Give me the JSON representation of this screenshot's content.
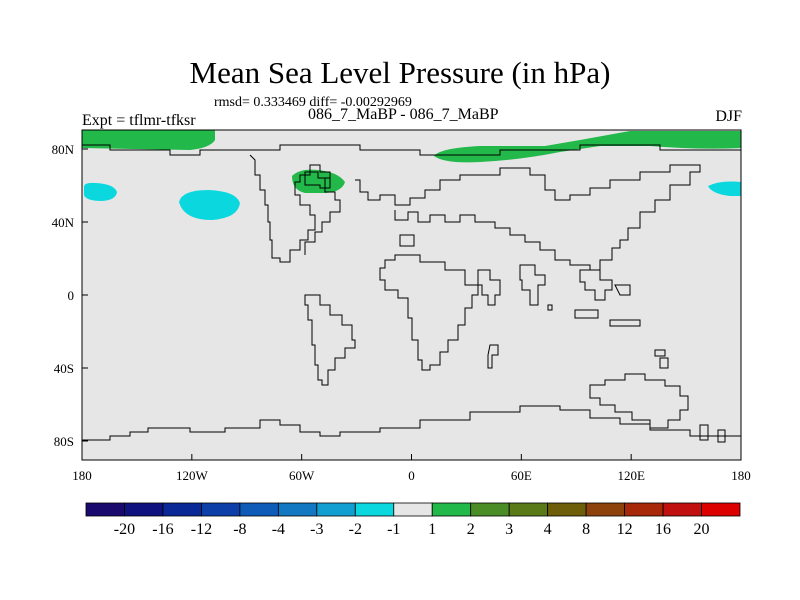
{
  "title": "Mean Sea Level Pressure (in hPa)",
  "stats": "rmsd= 0.333469 diff= -0.00292969",
  "subtitle": "086_7_MaBP - 086_7_MaBP",
  "left_label": "Expt = tflmr-tfksr",
  "right_label": "DJF",
  "colors": {
    "background_field": "#e6e6e6",
    "positive_anomaly": "#22b84a",
    "negative_anomaly": "#0ad8de",
    "coastline": "#000000"
  },
  "chart_data": {
    "type": "heatmap",
    "variable": "Mean Sea Level Pressure difference",
    "units": "hPa",
    "x_ticks": [
      "180",
      "120W",
      "60W",
      "0",
      "60E",
      "120E",
      "180"
    ],
    "y_ticks": [
      "80N",
      "40N",
      "0",
      "40S",
      "80S"
    ],
    "colorbar": {
      "labels": [
        "-20",
        "-16",
        "-12",
        "-8",
        "-4",
        "-3",
        "-2",
        "-1",
        "1",
        "2",
        "3",
        "4",
        "8",
        "12",
        "16",
        "20"
      ],
      "colors": [
        "#1a0a6e",
        "#10137f",
        "#0a2896",
        "#0c3fa8",
        "#0f5cb8",
        "#1278c2",
        "#109fd0",
        "#0ad8de",
        "#e6e6e6",
        "#22b84a",
        "#4a8c26",
        "#5a7a18",
        "#6e5e0a",
        "#8c420a",
        "#a8280a",
        "#c01010",
        "#dd0000"
      ]
    },
    "regions": [
      {
        "name": "arctic-atlantic",
        "sign": "positive",
        "level": "1 to 2"
      },
      {
        "name": "arctic-siberia",
        "sign": "positive",
        "level": "1 to 2"
      },
      {
        "name": "north-atlantic",
        "sign": "positive",
        "level": "1 to 2"
      },
      {
        "name": "north-pacific-west",
        "sign": "negative",
        "level": "-2 to -1"
      },
      {
        "name": "north-pacific-east",
        "sign": "negative",
        "level": "-2 to -1"
      },
      {
        "name": "north-pacific-dateline",
        "sign": "negative",
        "level": "-2 to -1"
      }
    ]
  }
}
